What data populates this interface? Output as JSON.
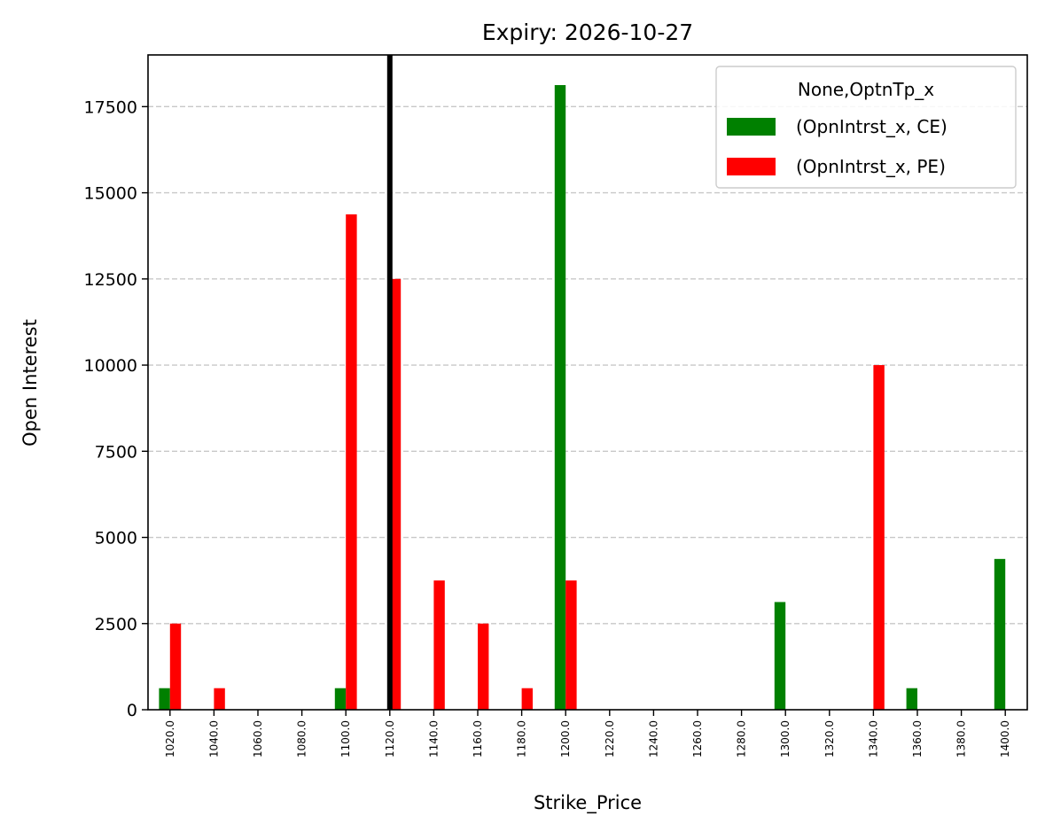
{
  "chart_data": {
    "type": "bar",
    "title": "Expiry: 2026-10-27",
    "xlabel": "Strike_Price",
    "ylabel": "Open Interest",
    "ylim": [
      0,
      19000
    ],
    "yticks": [
      0,
      2500,
      5000,
      7500,
      10000,
      12500,
      15000,
      17500
    ],
    "ytick_labels": [
      "0",
      "2500",
      "5000",
      "7500",
      "10000",
      "12500",
      "15000",
      "17500"
    ],
    "categories": [
      "1020.0",
      "1040.0",
      "1060.0",
      "1080.0",
      "1100.0",
      "1120.0",
      "1140.0",
      "1160.0",
      "1180.0",
      "1200.0",
      "1220.0",
      "1240.0",
      "1260.0",
      "1280.0",
      "1300.0",
      "1320.0",
      "1340.0",
      "1360.0",
      "1380.0",
      "1400.0"
    ],
    "series": [
      {
        "name": "(OpnIntrst_x, CE)",
        "color": "#008000",
        "values": [
          625,
          0,
          0,
          0,
          625,
          0,
          0,
          0,
          0,
          18125,
          0,
          0,
          0,
          0,
          3125,
          0,
          0,
          625,
          0,
          4375
        ]
      },
      {
        "name": "(OpnIntrst_x, PE)",
        "color": "#ff0000",
        "values": [
          2500,
          625,
          0,
          0,
          14375,
          12500,
          3750,
          2500,
          625,
          3750,
          0,
          0,
          0,
          0,
          0,
          0,
          10000,
          0,
          0,
          0
        ]
      }
    ],
    "marker_line": {
      "category": "1120.0",
      "color": "#000000"
    },
    "legend": {
      "title": "None,OptnTp_x",
      "placement": "top-right"
    },
    "grid": {
      "axis": "y",
      "style": "dashed",
      "color": "#c8c8c8"
    }
  }
}
